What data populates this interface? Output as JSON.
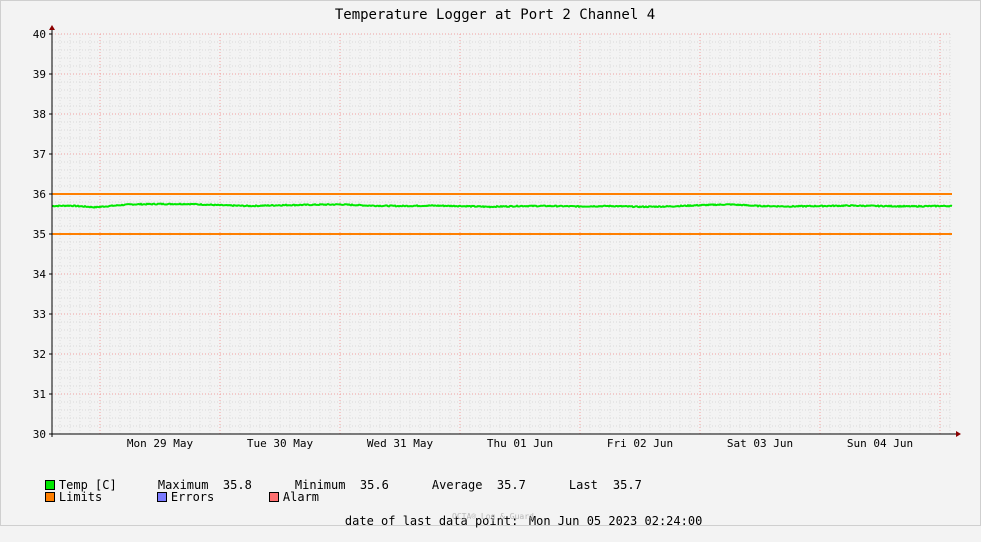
{
  "chart_data": {
    "type": "line",
    "title": "Temperature Logger at Port 2 Channel 4",
    "ylim": [
      30,
      40
    ],
    "yticks": [
      "30",
      "31",
      "32",
      "33",
      "34",
      "35",
      "36",
      "37",
      "38",
      "39",
      "40"
    ],
    "xlim": [
      "2023-05-28T14:24:00",
      "2023-06-05T02:24:00"
    ],
    "xtick_labels": [
      "Mon 29 May",
      "Tue 30 May",
      "Wed 31 May",
      "Thu 01 Jun",
      "Fri 02 Jun",
      "Sat 03 Jun",
      "Sun 04 Jun"
    ],
    "grid": true,
    "series": [
      {
        "name": "Temp [C]",
        "color": "#00e800",
        "x": [
          "2023-05-28T14:24:00",
          "2023-05-28T18:00:00",
          "2023-05-28T23:00:00",
          "2023-05-29T06:00:00",
          "2023-05-29T12:00:00",
          "2023-05-29T18:00:00",
          "2023-05-30T00:00:00",
          "2023-05-30T06:00:00",
          "2023-05-30T12:00:00",
          "2023-05-30T18:00:00",
          "2023-05-31T00:00:00",
          "2023-05-31T06:00:00",
          "2023-05-31T12:00:00",
          "2023-05-31T18:00:00",
          "2023-06-01T00:00:00",
          "2023-06-01T06:00:00",
          "2023-06-01T12:00:00",
          "2023-06-01T18:00:00",
          "2023-06-02T00:00:00",
          "2023-06-02T06:00:00",
          "2023-06-02T12:00:00",
          "2023-06-02T18:00:00",
          "2023-06-03T00:00:00",
          "2023-06-03T06:00:00",
          "2023-06-03T12:00:00",
          "2023-06-03T18:00:00",
          "2023-06-04T00:00:00",
          "2023-06-04T06:00:00",
          "2023-06-04T12:00:00",
          "2023-06-04T18:00:00",
          "2023-06-05T00:00:00",
          "2023-06-05T02:24:00"
        ],
        "values": [
          35.7,
          35.71,
          35.67,
          35.74,
          35.75,
          35.75,
          35.72,
          35.7,
          35.72,
          35.73,
          35.74,
          35.71,
          35.7,
          35.71,
          35.7,
          35.68,
          35.7,
          35.7,
          35.69,
          35.7,
          35.68,
          35.69,
          35.72,
          35.74,
          35.7,
          35.69,
          35.7,
          35.71,
          35.7,
          35.69,
          35.7,
          35.7
        ]
      },
      {
        "name": "Limits",
        "color": "#ff7f00",
        "kind": "limits",
        "values": [
          35,
          36
        ]
      }
    ]
  },
  "legend": {
    "temp": {
      "label": "Temp [C]",
      "color": "#00e800"
    },
    "limits": {
      "label": "Limits",
      "color": "#ff7f00"
    },
    "errors": {
      "label": "Errors",
      "color": "#7a7aff"
    },
    "alarm": {
      "label": "Alarm",
      "color": "#ff7070"
    }
  },
  "stats": {
    "maximum_label": "Maximum",
    "maximum": "35.8",
    "minimum_label": "Minimum",
    "minimum": "35.6",
    "average_label": "Average",
    "average": "35.7",
    "last_label": "Last",
    "last": "35.7"
  },
  "footer": {
    "last_data_label": "date of last data point:",
    "last_data_value": "Mon Jun 05 2023 02:24:00",
    "watermark": "OCTA® Log & Guard"
  }
}
